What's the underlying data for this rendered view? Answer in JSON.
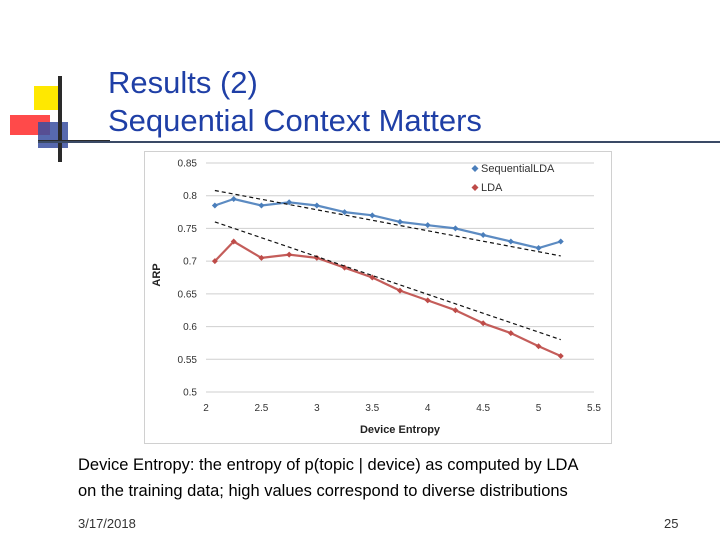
{
  "slide": {
    "title_line1": "Results (2)",
    "title_line2": "Sequential Context Matters",
    "caption_line1": "Device Entropy: the entropy of p(topic | device) as computed by LDA",
    "caption_line2": "on the training data; high values correspond to diverse distributions",
    "date": "3/17/2018",
    "page_number": "25"
  },
  "colors": {
    "title": "#1f3fa6",
    "sequential": "#4a7ebb",
    "lda": "#be4b48"
  },
  "chart_data": {
    "type": "scatter",
    "title": "",
    "xlabel": "Device Entropy",
    "ylabel": "ARP",
    "xlim": [
      2,
      5.5
    ],
    "ylim": [
      0.5,
      0.85
    ],
    "xticks": [
      "2",
      "2.5",
      "3",
      "3.5",
      "4",
      "4.5",
      "5",
      "5.5"
    ],
    "yticks": [
      "0.5",
      "0.55",
      "0.6",
      "0.65",
      "0.7",
      "0.75",
      "0.8",
      "0.85"
    ],
    "legend_position": "top-right",
    "series": [
      {
        "name": "SequentialLDA",
        "marker": "diamond",
        "x": [
          2.08,
          2.25,
          2.5,
          2.75,
          3.0,
          3.25,
          3.5,
          3.75,
          4.0,
          4.25,
          4.5,
          4.75,
          5.0,
          5.2
        ],
        "y": [
          0.785,
          0.795,
          0.785,
          0.79,
          0.785,
          0.775,
          0.77,
          0.76,
          0.755,
          0.75,
          0.74,
          0.73,
          0.72,
          0.73
        ],
        "trendline": {
          "x": [
            2.08,
            5.2
          ],
          "y": [
            0.808,
            0.708
          ]
        }
      },
      {
        "name": "LDA",
        "marker": "diamond",
        "x": [
          2.08,
          2.25,
          2.5,
          2.75,
          3.0,
          3.25,
          3.5,
          3.75,
          4.0,
          4.25,
          4.5,
          4.75,
          5.0,
          5.2
        ],
        "y": [
          0.7,
          0.73,
          0.705,
          0.71,
          0.705,
          0.69,
          0.675,
          0.655,
          0.64,
          0.625,
          0.605,
          0.59,
          0.57,
          0.555
        ],
        "trendline": {
          "x": [
            2.08,
            5.2
          ],
          "y": [
            0.76,
            0.58
          ]
        }
      }
    ]
  }
}
